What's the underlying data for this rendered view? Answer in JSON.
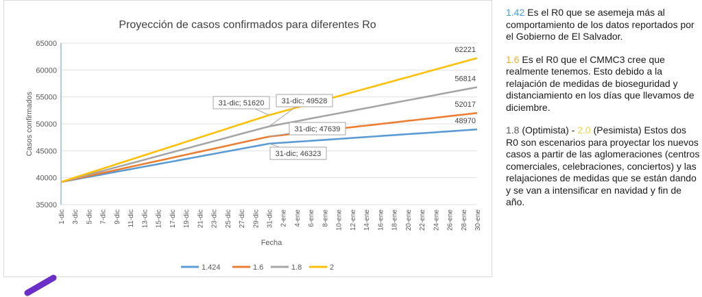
{
  "chart_data": {
    "type": "line",
    "title": "Proyección de casos confirmados para diferentes Ro",
    "xlabel": "Fecha",
    "ylabel": "Casos confirmados",
    "ylim": [
      35000,
      65000
    ],
    "yticks": [
      35000,
      40000,
      45000,
      50000,
      55000,
      60000,
      65000
    ],
    "grid": "horizontal",
    "legend_position": "bottom",
    "x_tick_labels": [
      "1-dic",
      "3-dic",
      "5-dic",
      "7-dic",
      "9-dic",
      "11-dic",
      "13-dic",
      "15-dic",
      "17-dic",
      "19-dic",
      "21-dic",
      "23-dic",
      "25-dic",
      "27-dic",
      "29-dic",
      "31-dic",
      "2-ene",
      "4-ene",
      "6-ene",
      "8-ene",
      "10-ene",
      "12-ene",
      "14-ene",
      "16-ene",
      "18-ene",
      "20-ene",
      "22-ene",
      "24-ene",
      "26-ene",
      "28-ene",
      "30-ene"
    ],
    "series": [
      {
        "name": "1.424",
        "color": "#5b9bd5",
        "start": 39200,
        "mid": 46323,
        "end": 48970
      },
      {
        "name": "1.6",
        "color": "#ed7d31",
        "start": 39200,
        "mid": 47639,
        "end": 52017
      },
      {
        "name": "1.8",
        "color": "#a5a5a5",
        "start": 39200,
        "mid": 49528,
        "end": 56814
      },
      {
        "name": "2",
        "color": "#ffc000",
        "start": 39200,
        "mid": 51620,
        "end": 62221
      }
    ],
    "annotations": [
      {
        "series": "2",
        "text": "31-dic; 51620"
      },
      {
        "series": "1.8",
        "text": "31-dic; 49528"
      },
      {
        "series": "1.6",
        "text": "31-dic; 47639"
      },
      {
        "series": "1.424",
        "text": "31-dic; 46323"
      }
    ],
    "end_labels": [
      "62221",
      "56814",
      "52017",
      "48970"
    ]
  },
  "side": {
    "p1_value": "1.42",
    "p1_text": " Es el R0 que se asemeja más al comportamiento de los datos reportados por el Gobierno de El Salvador.",
    "p2_value": "1.6",
    "p2_text": " Es el R0 que el CMMC3 cree que realmente tenemos. Esto debido a la relajación de medidas de bioseguridad y distanciamiento en los días que llevamos de diciembre.",
    "p3_value_a": "1.8",
    "p3_mid": " (Optimista) - ",
    "p3_value_b": "2.0",
    "p3_text": " (Pesimista) Estos dos R0 son escenarios para proyectar los nuevos casos a partir de las aglomeraciones (centros comerciales, celebraciones, conciertos) y las relajaciones de medidas que se están dando y se van a intensificar en navidad y fin de año."
  }
}
